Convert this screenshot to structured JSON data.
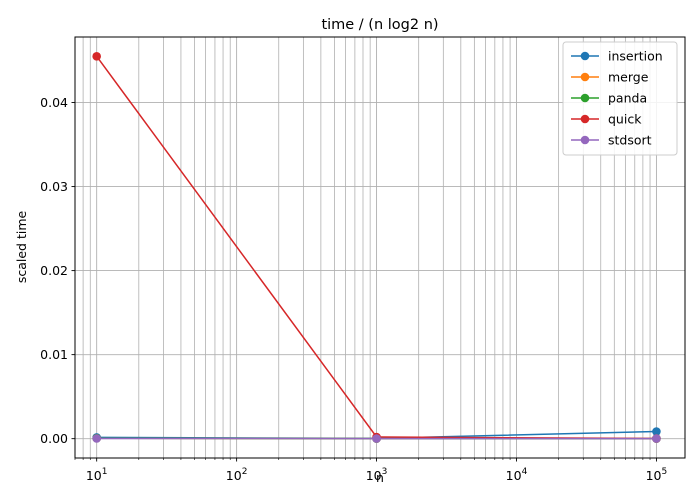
{
  "chart_data": {
    "type": "line",
    "title": "time / (n log2 n)",
    "xlabel": "n",
    "ylabel": "scaled time",
    "x_scale": "log",
    "xlim": [
      7,
      160000
    ],
    "ylim": [
      -0.0023,
      0.0478
    ],
    "grid": "both",
    "legend_position": "top-right",
    "x_ticks": [
      {
        "value": 10,
        "base": "10",
        "exp": "1"
      },
      {
        "value": 100,
        "base": "10",
        "exp": "2"
      },
      {
        "value": 1000,
        "base": "10",
        "exp": "3"
      },
      {
        "value": 10000,
        "base": "10",
        "exp": "4"
      },
      {
        "value": 100000,
        "base": "10",
        "exp": "5"
      }
    ],
    "y_ticks": [
      {
        "value": 0.0,
        "label": "0.00"
      },
      {
        "value": 0.01,
        "label": "0.01"
      },
      {
        "value": 0.02,
        "label": "0.02"
      },
      {
        "value": 0.03,
        "label": "0.03"
      },
      {
        "value": 0.04,
        "label": "0.04"
      }
    ],
    "x": [
      10,
      1000,
      100000
    ],
    "series": [
      {
        "name": "insertion",
        "color": "#1f77b4",
        "values": [
          0.00015,
          3e-05,
          0.00085
        ]
      },
      {
        "name": "merge",
        "color": "#ff7f0e",
        "values": [
          5e-05,
          1e-05,
          1e-05
        ]
      },
      {
        "name": "panda",
        "color": "#2ca02c",
        "values": [
          5e-05,
          1e-05,
          1e-05
        ]
      },
      {
        "name": "quick",
        "color": "#d62728",
        "values": [
          0.0455,
          0.0002,
          2e-05
        ]
      },
      {
        "name": "stdsort",
        "color": "#9467bd",
        "values": [
          2e-05,
          1e-05,
          1e-05
        ]
      }
    ]
  }
}
